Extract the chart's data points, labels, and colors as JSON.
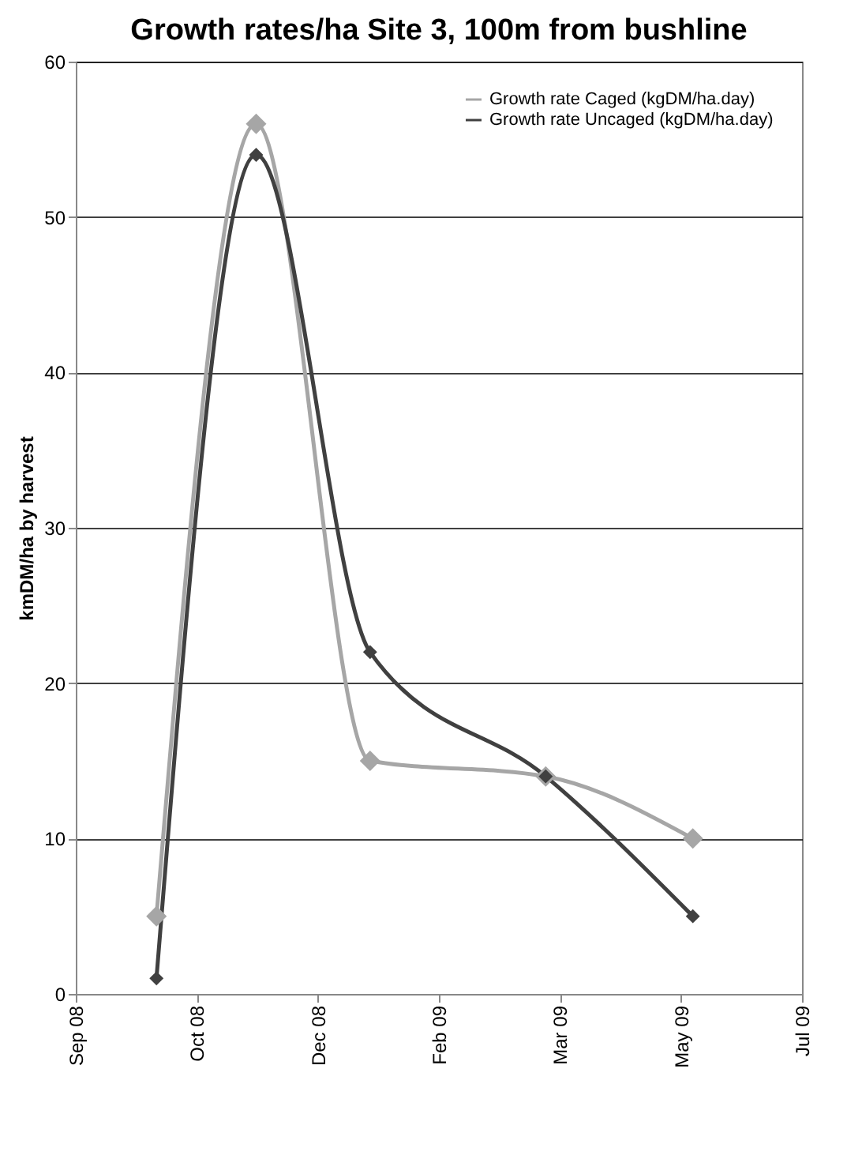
{
  "chart_data": {
    "type": "line",
    "title": "Growth rates/ha Site 3, 100m from bushline",
    "ylabel": "kmDM/ha by harvest",
    "x": [
      "2008-10-05",
      "2008-11-16",
      "2009-01-03",
      "2009-03-18",
      "2009-05-19"
    ],
    "series": [
      {
        "name": "Growth rate Caged (kgDM/ha.day)",
        "color": "#a6a6a6",
        "values": [
          5,
          56,
          15,
          14,
          10
        ]
      },
      {
        "name": "Growth rate Uncaged (kgDM/ha.day)",
        "color": "#404040",
        "values": [
          1,
          54,
          22,
          14,
          5
        ]
      }
    ],
    "xlim": [
      "2008-09-01",
      "2009-07-04"
    ],
    "xticks": [
      {
        "value": "2008-09-01",
        "label": "Sep 08"
      },
      {
        "value": "2008-10-22",
        "label": "Oct 08"
      },
      {
        "value": "2008-12-12",
        "label": "Dec 08"
      },
      {
        "value": "2009-02-01",
        "label": "Feb 09"
      },
      {
        "value": "2009-03-24",
        "label": "Mar 09"
      },
      {
        "value": "2009-05-14",
        "label": "May 09"
      },
      {
        "value": "2009-07-04",
        "label": "Jul 09"
      }
    ],
    "ylim": [
      0,
      60
    ],
    "yticks": [
      0,
      10,
      20,
      30,
      40,
      50,
      60
    ],
    "grid": "y",
    "legend": "top right",
    "marker": "diamond",
    "line_style": "solid"
  }
}
